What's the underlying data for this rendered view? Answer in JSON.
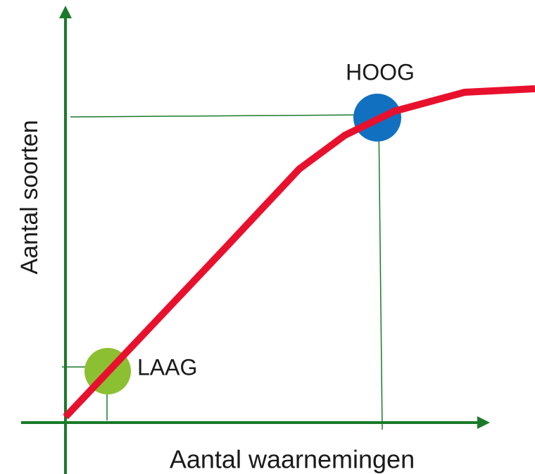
{
  "y_axis_label": "Aantal soorten",
  "x_axis_label": "Aantal waarnemingen",
  "high_label": "HOOG",
  "low_label": "LAAG"
}
